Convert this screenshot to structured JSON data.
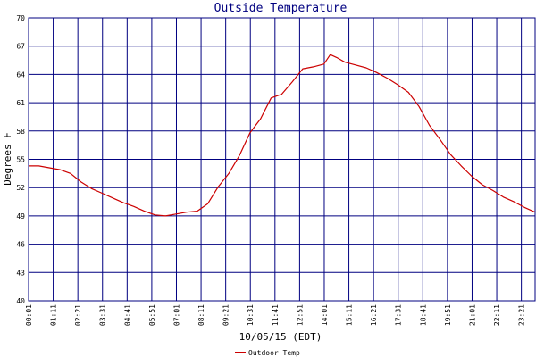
{
  "chart_data": {
    "type": "line",
    "title": "Outside Temperature",
    "xlabel": "10/05/15 (EDT)",
    "ylabel": "Degrees F",
    "ylim": [
      40,
      70
    ],
    "yticks": [
      "40",
      "43",
      "46",
      "49",
      "52",
      "55",
      "58",
      "61",
      "64",
      "67",
      "70"
    ],
    "xticks": [
      "00:01",
      "01:11",
      "02:21",
      "03:31",
      "04:41",
      "05:51",
      "07:01",
      "08:11",
      "09:21",
      "10:31",
      "11:41",
      "12:51",
      "14:01",
      "15:11",
      "16:21",
      "17:31",
      "18:41",
      "19:51",
      "21:01",
      "22:11",
      "23:21"
    ],
    "xlim_hours": [
      0.0167,
      24.0
    ],
    "grid": true,
    "colors": {
      "series": "#cc0000",
      "grid": "#000080",
      "title": "#000080"
    },
    "legend_position": "bottom-left",
    "series": [
      {
        "name": "Outdoor Temp",
        "x_hours": [
          0.02,
          0.5,
          1.0,
          1.5,
          2.0,
          2.5,
          3.0,
          3.5,
          4.0,
          4.5,
          5.0,
          5.5,
          6.0,
          6.5,
          7.0,
          7.5,
          8.0,
          8.5,
          9.0,
          9.5,
          10.0,
          10.5,
          11.0,
          11.5,
          12.0,
          12.5,
          13.0,
          13.5,
          14.0,
          14.3,
          14.6,
          15.0,
          15.5,
          16.0,
          16.5,
          17.0,
          17.5,
          18.0,
          18.5,
          19.0,
          19.5,
          20.0,
          20.5,
          21.0,
          21.5,
          22.0,
          22.5,
          23.0,
          23.5,
          24.0
        ],
        "values": [
          54.3,
          54.3,
          54.1,
          53.9,
          53.5,
          52.6,
          51.9,
          51.4,
          50.9,
          50.4,
          50.0,
          49.5,
          49.1,
          49.0,
          49.2,
          49.4,
          49.5,
          50.3,
          52.1,
          53.5,
          55.4,
          57.8,
          59.3,
          61.5,
          61.9,
          63.2,
          64.6,
          64.8,
          65.1,
          66.1,
          65.8,
          65.3,
          65.0,
          64.7,
          64.2,
          63.6,
          62.9,
          62.1,
          60.6,
          58.6,
          57.1,
          55.5,
          54.3,
          53.2,
          52.3,
          51.7,
          51.0,
          50.5,
          49.9,
          49.4
        ]
      }
    ]
  }
}
